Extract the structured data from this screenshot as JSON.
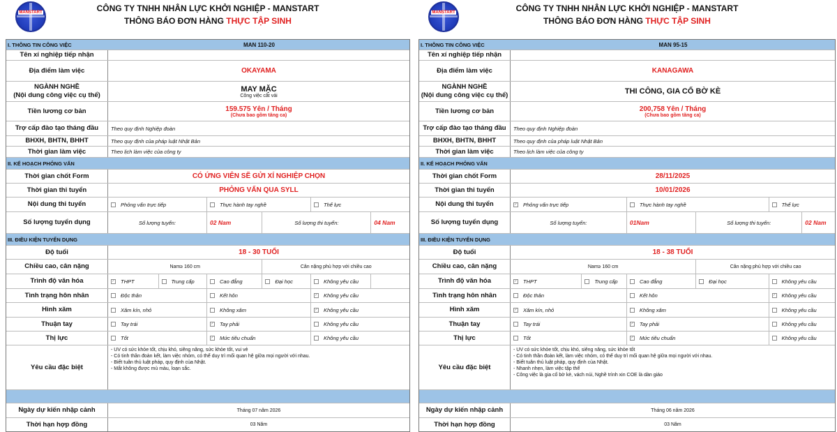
{
  "colors": {
    "header_blue": "#9dc3e6",
    "accent_red": "#e02020"
  },
  "forms": [
    {
      "logo_text": "MANSTART",
      "company": "CÔNG TY TNHH NHÂN LỰC KHỞI NGHIỆP - MANSTART",
      "title_black": "THÔNG BÁO ĐƠN HÀNG ",
      "title_red": "THỰC TẬP SINH",
      "rows": [
        {
          "type": "section",
          "label": "I. THÔNG TIN CÔNG VIỆC",
          "value": "MAN 110-20"
        },
        {
          "type": "text",
          "label": "Tên xí nghiệp tiếp nhận",
          "value": ""
        },
        {
          "type": "text",
          "label": "Địa điểm làm việc",
          "value": "OKAYAMA",
          "style": "red"
        },
        {
          "type": "text",
          "label": "NGÀNH NGHỀ\n(Nội dung công việc cụ thể)",
          "value": "MAY MẶC",
          "style": "bold",
          "sub": "Công việc cắt vải"
        },
        {
          "type": "text",
          "label": "Tiền lương cơ bản",
          "value": "159.575 Yên / Tháng",
          "style": "red",
          "sub": "(Chưa bao gồm tăng ca)"
        },
        {
          "type": "text",
          "label": "Trợ cấp đào tạo tháng đầu",
          "value": "Theo quy định Nghiệp đoàn",
          "style": "italic"
        },
        {
          "type": "text",
          "label": "BHXH, BHTN, BHHT",
          "value": "Theo quy định của pháp luật Nhật Bản",
          "style": "italic"
        },
        {
          "type": "text",
          "label": "Thời gian làm việc",
          "value": "Theo lịch làm việc của công ty",
          "style": "italic"
        },
        {
          "type": "section",
          "label": "II. KẾ HOẠCH PHỎNG VẤN"
        },
        {
          "type": "text",
          "label": "Thời gian chốt Form",
          "value": "CÓ ỨNG VIÊN SẼ GỬI XÍ NGHIỆP CHỌN",
          "style": "red"
        },
        {
          "type": "text",
          "label": "Thời gian thi tuyển",
          "value": "PHỎNG VẤN QUA SYLL",
          "style": "red"
        },
        {
          "type": "options",
          "label": "Nội dung thi tuyển",
          "options": [
            {
              "label": "Phỏng vấn trực tiếp",
              "checked": false
            },
            {
              "label": "Thực hành tay nghề",
              "checked": false
            },
            {
              "label": "Thể lực",
              "checked": false
            }
          ]
        },
        {
          "type": "count",
          "label": "Số lượng tuyển dụng",
          "fields": [
            "Số lượng tuyển:",
            "02 Nam",
            "Số lượng thi tuyển:",
            "04 Nam"
          ]
        },
        {
          "type": "section",
          "label": "III. ĐIỀU KIỆN TUYỂN DỤNG"
        },
        {
          "type": "text",
          "label": "Độ tuổi",
          "value": "18 - 30 TUỔI",
          "style": "red"
        },
        {
          "type": "split",
          "label": "Chiều cao, cân nặng",
          "values": [
            "Nam≥ 160 cm",
            "Cân nặng phù hợp với chiều cao"
          ]
        },
        {
          "type": "options",
          "label": "Trình độ văn hóa",
          "options": [
            {
              "label": "THPT",
              "checked": true
            },
            {
              "label": "Trung cấp",
              "checked": false
            },
            {
              "label": "Cao đẳng",
              "checked": false
            },
            {
              "label": "Đại học",
              "checked": false
            },
            {
              "label": "Không yêu cầu",
              "checked": false
            }
          ]
        },
        {
          "type": "options",
          "label": "Tình trạng hôn nhân",
          "options": [
            {
              "label": "Độc thân",
              "checked": false
            },
            {
              "label": "Kết hôn",
              "checked": false
            },
            {
              "label": "Không yêu cầu",
              "checked": true
            }
          ]
        },
        {
          "type": "options",
          "label": "Hình xăm",
          "options": [
            {
              "label": "Xăm kín, nhỏ",
              "checked": false
            },
            {
              "label": "Không xăm",
              "checked": false
            },
            {
              "label": "Không yêu cầu",
              "checked": true
            }
          ]
        },
        {
          "type": "options",
          "label": "Thuận tay",
          "options": [
            {
              "label": "Tay trái",
              "checked": false
            },
            {
              "label": "Tay phải",
              "checked": true
            },
            {
              "label": "Không yêu cầu",
              "checked": false
            }
          ]
        },
        {
          "type": "options",
          "label": "Thị lực",
          "options": [
            {
              "label": "Tốt",
              "checked": false
            },
            {
              "label": "Mức tiêu chuẩn",
              "checked": true
            },
            {
              "label": "Không yêu cầu",
              "checked": false
            }
          ]
        },
        {
          "type": "list",
          "label": "Yêu cầu đặc biệt",
          "lines": [
            "- UV có sức khỏe tốt, chịu khó, siêng năng, sức khỏe tốt, vui vẻ",
            "- Có tinh thần đoàn kết, làm việc nhóm, có thể duy trì mối quan hệ giữa mọi người với nhau.",
            "- Biết tuân thủ luật pháp, quy định của Nhật.",
            "- Mắt không được mù màu, loạn sắc."
          ]
        },
        {
          "type": "blank"
        },
        {
          "type": "text",
          "label": "Ngày dự kiến nhập cảnh",
          "value": "Tháng 07 năm 2026",
          "style": "plain"
        },
        {
          "type": "text",
          "label": "Thời hạn hợp đồng",
          "value": "03 Năm",
          "style": "plain"
        }
      ]
    },
    {
      "logo_text": "MANSTART",
      "company": "CÔNG TY TNHH NHÂN LỰC KHỞI NGHIỆP - MANSTART",
      "title_black": "THÔNG BÁO ĐƠN HÀNG ",
      "title_red": "THỰC TẬP SINH",
      "rows": [
        {
          "type": "section",
          "label": "I. THÔNG TIN CÔNG VIỆC",
          "value": "MAN 95-15"
        },
        {
          "type": "text",
          "label": "Tên xí nghiệp tiếp nhận",
          "value": ""
        },
        {
          "type": "text",
          "label": "Địa điểm làm việc",
          "value": "KANAGAWA",
          "style": "red"
        },
        {
          "type": "text",
          "label": "NGÀNH NGHỀ\n(Nội dung công việc cụ thể)",
          "value": "THI CÔNG, GIA CỐ BỜ KÈ",
          "style": "bold"
        },
        {
          "type": "text",
          "label": "Tiền lương cơ bản",
          "value": "200,758 Yên / Tháng",
          "style": "red",
          "sub": "(Chưa bao gồm tăng ca)"
        },
        {
          "type": "text",
          "label": "Trợ cấp đào tạo tháng đầu",
          "value": "Theo quy định Nghiệp đoàn",
          "style": "italic"
        },
        {
          "type": "text",
          "label": "BHXH, BHTN, BHHT",
          "value": "Theo quy định của pháp luật Nhật Bản",
          "style": "italic"
        },
        {
          "type": "text",
          "label": "Thời gian làm việc",
          "value": "Theo lịch làm việc của công ty",
          "style": "italic"
        },
        {
          "type": "section",
          "label": "II. KẾ HOẠCH PHỎNG VẤN"
        },
        {
          "type": "text",
          "label": "Thời gian chốt Form",
          "value": "28/11/2025",
          "style": "red"
        },
        {
          "type": "text",
          "label": "Thời gian thi tuyển",
          "value": "10/01/2026",
          "style": "red"
        },
        {
          "type": "options",
          "label": "Nội dung thi tuyển",
          "options": [
            {
              "label": "Phỏng vấn trực tiếp",
              "checked": true
            },
            {
              "label": "Thực hành tay nghề",
              "checked": false
            },
            {
              "label": "Thể lực",
              "checked": false
            }
          ]
        },
        {
          "type": "count",
          "label": "Số lượng tuyển dụng",
          "fields": [
            "Số lượng tuyển:",
            "01Nam",
            "Số lượng thi tuyển:",
            "02 Nam"
          ]
        },
        {
          "type": "section",
          "label": "III. ĐIỀU KIỆN TUYỂN DỤNG"
        },
        {
          "type": "text",
          "label": "Độ tuổi",
          "value": "18 - 38 TUỔI",
          "style": "red"
        },
        {
          "type": "split",
          "label": "Chiều cao, cân nặng",
          "values": [
            "Nam≥ 160 cm",
            "Cân nặng phù hợp với chiều cao"
          ]
        },
        {
          "type": "options",
          "label": "Trình độ văn hóa",
          "options": [
            {
              "label": "THPT",
              "checked": true
            },
            {
              "label": "Trung cấp",
              "checked": false
            },
            {
              "label": "Cao đẳng",
              "checked": false
            },
            {
              "label": "Đại học",
              "checked": false
            },
            {
              "label": "Không yêu cầu",
              "checked": false
            }
          ]
        },
        {
          "type": "options",
          "label": "Tình trạng hôn nhân",
          "options": [
            {
              "label": "Độc thân",
              "checked": false
            },
            {
              "label": "Kết hôn",
              "checked": false
            },
            {
              "label": "Không yêu cầu",
              "checked": true
            }
          ]
        },
        {
          "type": "options",
          "label": "Hình xăm",
          "options": [
            {
              "label": "Xăm kín, nhỏ",
              "checked": true
            },
            {
              "label": "Không xăm",
              "checked": false
            },
            {
              "label": "Không yêu cầu",
              "checked": false
            }
          ]
        },
        {
          "type": "options",
          "label": "Thuận tay",
          "options": [
            {
              "label": "Tay trái",
              "checked": false
            },
            {
              "label": "Tay phải",
              "checked": true
            },
            {
              "label": "Không yêu cầu",
              "checked": false
            }
          ]
        },
        {
          "type": "options",
          "label": "Thị lực",
          "options": [
            {
              "label": "Tốt",
              "checked": false
            },
            {
              "label": "Mức tiêu chuẩn",
              "checked": true
            },
            {
              "label": "Không yêu cầu",
              "checked": false
            }
          ]
        },
        {
          "type": "list",
          "label": "Yêu cầu đặc biệt",
          "lines": [
            "- UV có sức khỏe tốt, chịu khó, siêng năng, sức khỏe tốt",
            "- Có tinh thần đoàn kết, làm việc nhóm, có thể duy trì mối quan hệ giữa mọi người với nhau.",
            "- Biết tuân thủ luật pháp, quy định của Nhật.",
            "- Nhanh nhẹn, làm việc tập thể",
            "- Công việc là gia cố bờ kè, vách núi, Nghề trình xin COE là dàn giáo"
          ]
        },
        {
          "type": "blank"
        },
        {
          "type": "text",
          "label": "Ngày dự kiến nhập cảnh",
          "value": "Tháng 06 năm 2026",
          "style": "plain"
        },
        {
          "type": "text",
          "label": "Thời hạn hợp đồng",
          "value": "03 Năm",
          "style": "plain"
        }
      ]
    }
  ]
}
